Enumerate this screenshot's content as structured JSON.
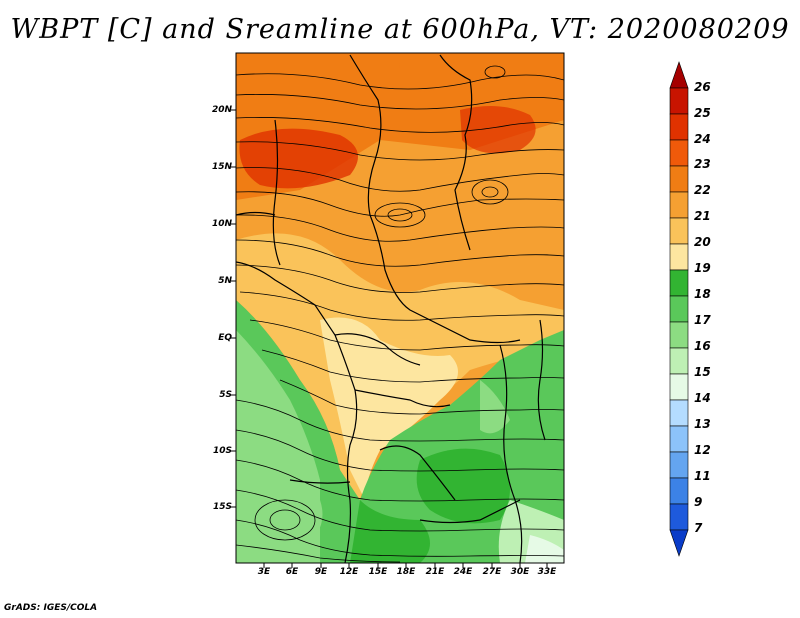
{
  "title": "WBPT [C] and Sreamline at 600hPa, VT: 2020080209",
  "credit": "GrADS: IGES/COLA",
  "map": {
    "y_tick_labels": [
      "20N",
      "15N",
      "10N",
      "5N",
      "EQ",
      "5S",
      "10S",
      "15S"
    ],
    "x_tick_labels": [
      "3E",
      "6E",
      "9E",
      "12E",
      "15E",
      "18E",
      "21E",
      "24E",
      "27E",
      "30E",
      "33E"
    ]
  },
  "colorbar": {
    "labels": [
      "26",
      "25",
      "24",
      "23",
      "22",
      "21",
      "20",
      "19",
      "18",
      "17",
      "16",
      "15",
      "14",
      "13",
      "12",
      "11",
      "9",
      "7"
    ],
    "colors": [
      "#a50000",
      "#c81400",
      "#e03200",
      "#f05a0a",
      "#f07d14",
      "#f5a032",
      "#fac35a",
      "#fde6a0",
      "#32b432",
      "#5ac85a",
      "#8cdc82",
      "#bef0b4",
      "#e6fae6",
      "#b4dcff",
      "#8cc3fa",
      "#64a5f0",
      "#3c82e6",
      "#1e5adc",
      "#0a3cc8"
    ]
  }
}
